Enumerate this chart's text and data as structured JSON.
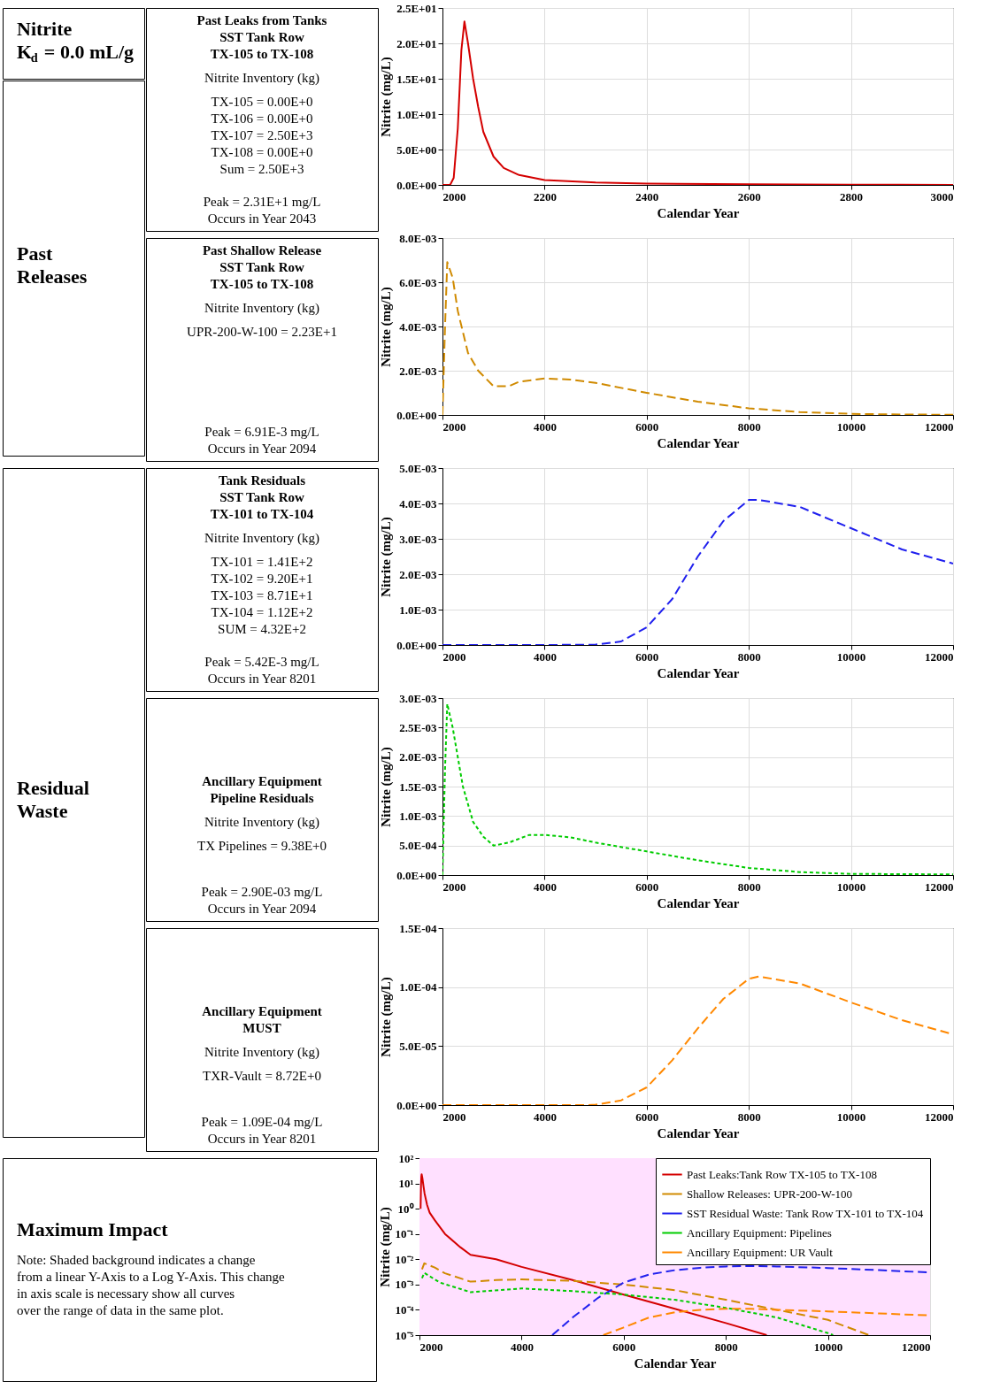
{
  "chart_data": [
    {
      "type": "other",
      "title": "Nitrite\nK$_{d}$ = 0.0 mL/g"
    },
    {
      "type": "other",
      "title": "Past\nReleases"
    },
    {
      "type": "other",
      "title": "Past Leaks from Tanks\nSST Tank Row\nTX-105 to TX-108",
      "annotations": [
        "Nitrite Inventory (kg)",
        "TX-105 = 0.00E+0",
        "TX-106 = 0.00E+0",
        "TX-107 = 2.50E+3",
        "TX-108 = 0.00E+0",
        "Sum = 2.50E+3",
        "Peak = 2.31E+1 mg/L",
        "Occurs in Year 2043"
      ]
    },
    {
      "type": "line",
      "xlabel": "Calendar Year",
      "ylabel": "Nitrite (mg/L)",
      "xlim": [
        2000,
        3000
      ],
      "xticks": [
        2000,
        2200,
        2400,
        2600,
        2800,
        3000
      ],
      "ylim": [
        0,
        25
      ],
      "yticks": [
        {
          "value": 0,
          "label": "0.0E+00"
        },
        {
          "value": 5,
          "label": "5.0E+00"
        },
        {
          "value": 10,
          "label": "1.0E+01"
        },
        {
          "value": 15,
          "label": "1.5E+01"
        },
        {
          "value": 20,
          "label": "2.0E+01"
        },
        {
          "value": 25,
          "label": "2.5E+01"
        }
      ],
      "grid": true,
      "series": [
        {
          "color": "#d40000",
          "line_style": "solid",
          "x": [
            2000,
            2015,
            2022,
            2030,
            2037,
            2043,
            2050,
            2060,
            2070,
            2080,
            2100,
            2120,
            2150,
            2200,
            2300,
            2400,
            2600,
            2800,
            3000
          ],
          "values": [
            0,
            0,
            1,
            8,
            19,
            23.1,
            20,
            15,
            11,
            7.5,
            4,
            2.4,
            1.4,
            0.7,
            0.35,
            0.2,
            0.08,
            0.03,
            0.01
          ]
        }
      ]
    },
    {
      "type": "other",
      "title": "Past Shallow Release\nSST Tank Row\nTX-105 to TX-108",
      "annotations": [
        "Nitrite Inventory (kg)",
        "UPR-200-W-100 = 2.23E+1",
        "Peak = 6.91E-3 mg/L",
        "Occurs in Year 2094"
      ]
    },
    {
      "type": "line",
      "xlabel": "Calendar Year",
      "ylabel": "Nitrite (mg/L)",
      "xlim": [
        2000,
        12000
      ],
      "xticks": [
        2000,
        4000,
        6000,
        8000,
        10000,
        12000
      ],
      "ylim": [
        0,
        0.008
      ],
      "yticks": [
        {
          "value": 0,
          "label": "0.0E+00"
        },
        {
          "value": 0.002,
          "label": "2.0E-03"
        },
        {
          "value": 0.004,
          "label": "4.0E-03"
        },
        {
          "value": 0.006,
          "label": "6.0E-03"
        },
        {
          "value": 0.008,
          "label": "8.0E-03"
        }
      ],
      "grid": true,
      "series": [
        {
          "color": "#d08a00",
          "line_style": "dashed",
          "x": [
            2000,
            2050,
            2094,
            2200,
            2300,
            2500,
            2700,
            3000,
            3300,
            3500,
            4000,
            4500,
            5000,
            6000,
            7000,
            8000,
            9000,
            10000,
            11000,
            12000
          ],
          "values": [
            0,
            0.004,
            0.00691,
            0.0062,
            0.0047,
            0.0028,
            0.002,
            0.0013,
            0.0013,
            0.0015,
            0.00165,
            0.0016,
            0.00145,
            0.001,
            0.0006,
            0.0003,
            0.00013,
            5e-05,
            2e-05,
            1e-05
          ]
        }
      ]
    },
    {
      "type": "other",
      "title": "Residual\nWaste"
    },
    {
      "type": "other",
      "title": "Tank Residuals\nSST Tank Row\nTX-101 to TX-104",
      "annotations": [
        "Nitrite Inventory (kg)",
        "TX-101 = 1.41E+2",
        "TX-102 = 9.20E+1",
        "TX-103 = 8.71E+1",
        "TX-104 = 1.12E+2",
        "SUM = 4.32E+2",
        "Peak = 5.42E-3 mg/L",
        "Occurs in Year 8201"
      ]
    },
    {
      "type": "line",
      "xlabel": "Calendar Year",
      "ylabel": "Nitrite (mg/L)",
      "xlim": [
        2000,
        12000
      ],
      "xticks": [
        2000,
        4000,
        6000,
        8000,
        10000,
        12000
      ],
      "ylim": [
        0,
        0.005
      ],
      "yticks": [
        {
          "value": 0,
          "label": "0.0E+00"
        },
        {
          "value": 0.001,
          "label": "1.0E-03"
        },
        {
          "value": 0.002,
          "label": "2.0E-03"
        },
        {
          "value": 0.003,
          "label": "3.0E-03"
        },
        {
          "value": 0.004,
          "label": "4.0E-03"
        },
        {
          "value": 0.005,
          "label": "5.0E-03"
        }
      ],
      "grid": true,
      "series": [
        {
          "color": "#2020ee",
          "line_style": "dashed",
          "x": [
            2000,
            4000,
            5000,
            5500,
            6000,
            6500,
            7000,
            7500,
            8000,
            8201,
            9000,
            10000,
            11000,
            12000
          ],
          "values": [
            0,
            0,
            1e-05,
            0.0001,
            0.0005,
            0.0013,
            0.0025,
            0.0035,
            0.0041,
            0.0041,
            0.0039,
            0.0033,
            0.0027,
            0.0023
          ]
        }
      ]
    },
    {
      "type": "other",
      "title": "Ancillary Equipment\nPipeline Residuals",
      "annotations": [
        "Nitrite Inventory (kg)",
        "TX Pipelines = 9.38E+0",
        "Peak = 2.90E-03 mg/L",
        "Occurs in Year 2094"
      ]
    },
    {
      "type": "line",
      "xlabel": "Calendar Year",
      "ylabel": "Nitrite (mg/L)",
      "xlim": [
        2000,
        12000
      ],
      "xticks": [
        2000,
        4000,
        6000,
        8000,
        10000,
        12000
      ],
      "ylim": [
        0,
        0.003
      ],
      "yticks": [
        {
          "value": 0,
          "label": "0.0E+00"
        },
        {
          "value": 0.0005,
          "label": "5.0E-04"
        },
        {
          "value": 0.001,
          "label": "1.0E-03"
        },
        {
          "value": 0.0015,
          "label": "1.5E-03"
        },
        {
          "value": 0.002,
          "label": "2.0E-03"
        },
        {
          "value": 0.0025,
          "label": "2.5E-03"
        },
        {
          "value": 0.003,
          "label": "3.0E-03"
        }
      ],
      "grid": true,
      "series": [
        {
          "color": "#00cc00",
          "line_style": "dotted",
          "x": [
            2000,
            2050,
            2094,
            2200,
            2400,
            2600,
            2800,
            3000,
            3300,
            3700,
            4000,
            4500,
            5000,
            6000,
            7000,
            8000,
            9000,
            10000,
            12000
          ],
          "values": [
            0,
            0.0018,
            0.0029,
            0.0025,
            0.0015,
            0.0009,
            0.00065,
            0.0005,
            0.00055,
            0.00068,
            0.00068,
            0.00064,
            0.00055,
            0.0004,
            0.00025,
            0.00012,
            5e-05,
            2e-05,
            1e-05
          ]
        }
      ]
    },
    {
      "type": "other",
      "title": "Ancillary Equipment\nMUST",
      "annotations": [
        "Nitrite Inventory (kg)",
        "TXR-Vault = 8.72E+0",
        "Peak = 1.09E-04 mg/L",
        "Occurs in Year 8201"
      ]
    },
    {
      "type": "line",
      "xlabel": "Calendar Year",
      "ylabel": "Nitrite (mg/L)",
      "xlim": [
        2000,
        12000
      ],
      "xticks": [
        2000,
        4000,
        6000,
        8000,
        10000,
        12000
      ],
      "ylim": [
        0,
        0.00015
      ],
      "yticks": [
        {
          "value": 0,
          "label": "0.0E+00"
        },
        {
          "value": 5e-05,
          "label": "5.0E-05"
        },
        {
          "value": 0.0001,
          "label": "1.0E-04"
        },
        {
          "value": 0.00015,
          "label": "1.5E-04"
        }
      ],
      "grid": true,
      "series": [
        {
          "color": "#ff8800",
          "line_style": "dashed",
          "x": [
            2000,
            4800,
            5000,
            5500,
            6000,
            6500,
            7000,
            7500,
            8000,
            8201,
            9000,
            10000,
            11000,
            12000
          ],
          "values": [
            0,
            0,
            3e-07,
            4e-06,
            1.5e-05,
            3.8e-05,
            6.5e-05,
            9e-05,
            0.000107,
            0.000109,
            0.000103,
            8.7e-05,
            7.2e-05,
            6e-05
          ]
        }
      ]
    },
    {
      "type": "other",
      "title": "Maximum Impact",
      "annotations": [
        "Note:  Shaded background indicates a change",
        "from a linear Y-Axis to a Log Y-Axis.  This change",
        "in axis scale is necessary show all curves",
        "over the range of data in the same plot."
      ]
    },
    {
      "type": "line",
      "xlabel": "Calendar Year",
      "ylabel": "Nitrite (mg/L)",
      "xlim": [
        2000,
        12000
      ],
      "xticks": [
        2000,
        4000,
        6000,
        8000,
        10000,
        12000
      ],
      "ylim": [
        1e-05,
        100
      ],
      "log": true,
      "yticks": [
        {
          "value": 100,
          "label": "10²"
        },
        {
          "value": 10,
          "label": "10¹"
        },
        {
          "value": 1,
          "label": "10⁰"
        },
        {
          "value": 0.1,
          "label": "10⁻¹"
        },
        {
          "value": 0.01,
          "label": "10⁻²"
        },
        {
          "value": 0.001,
          "label": "10⁻³"
        },
        {
          "value": 0.0001,
          "label": "10⁻⁴"
        },
        {
          "value": 1e-05,
          "label": "10⁻⁵"
        }
      ],
      "grid": true,
      "legend": "top right",
      "bands": [
        {
          "axis": "y",
          "from": 1e-05,
          "to": 100,
          "color": "#ffe0ff"
        }
      ],
      "series": [
        {
          "name": "Past Leaks:Tank Row TX-105 to TX-108",
          "color": "#d40000",
          "line_style": "solid",
          "x": [
            2022,
            2030,
            2037,
            2043,
            2060,
            2080,
            2100,
            2150,
            2200,
            2300,
            2500,
            2800,
            3000,
            3500,
            4000,
            5000,
            6000,
            7000,
            8000,
            8800
          ],
          "values": [
            1,
            8,
            19,
            23.1,
            15,
            7.5,
            4,
            1.4,
            0.7,
            0.35,
            0.1,
            0.03,
            0.015,
            0.01,
            0.005,
            0.0015,
            0.0004,
            0.00011,
            3e-05,
            1e-05
          ]
        },
        {
          "name": "Shallow Releases: UPR-200-W-100",
          "color": "#d08a00",
          "line_style": "dashed",
          "x": [
            2050,
            2094,
            2300,
            2500,
            3000,
            3500,
            4000,
            5000,
            6000,
            7000,
            8000,
            9000,
            10000,
            10800
          ],
          "values": [
            0.004,
            0.0069,
            0.0047,
            0.0028,
            0.0013,
            0.0015,
            0.0016,
            0.0014,
            0.001,
            0.0006,
            0.00025,
            0.0001,
            4e-05,
            1e-05
          ]
        },
        {
          "name": "SST Residual Waste: Tank Row TX-101 to TX-104",
          "color": "#2020ee",
          "line_style": "dashed",
          "x": [
            4600,
            5000,
            5500,
            6000,
            6500,
            7000,
            7500,
            8000,
            8400,
            9000,
            10000,
            11000,
            12000
          ],
          "values": [
            1e-05,
            5e-05,
            0.0003,
            0.0012,
            0.0025,
            0.0037,
            0.0046,
            0.0052,
            0.0054,
            0.0052,
            0.0045,
            0.0037,
            0.003
          ]
        },
        {
          "name": "Ancillary Equipment: Pipelines",
          "color": "#00cc00",
          "line_style": "dotted",
          "x": [
            2050,
            2094,
            2400,
            3000,
            4000,
            5000,
            6000,
            7000,
            8000,
            9000,
            10000,
            10100
          ],
          "values": [
            0.0018,
            0.0029,
            0.0012,
            0.0005,
            0.0007,
            0.00055,
            0.0004,
            0.00025,
            0.00012,
            5e-05,
            1.2e-05,
            1e-05
          ]
        },
        {
          "name": "Ancillary Equipment: UR Vault",
          "color": "#ff8800",
          "line_style": "dashed",
          "x": [
            5600,
            6000,
            6500,
            7000,
            7500,
            8000,
            8500,
            9000,
            10000,
            11000,
            12000
          ],
          "values": [
            1e-05,
            2e-05,
            5e-05,
            8e-05,
            0.0001,
            0.00011,
            0.00011,
            0.0001,
            8.7e-05,
            7.2e-05,
            6e-05
          ]
        }
      ]
    }
  ]
}
